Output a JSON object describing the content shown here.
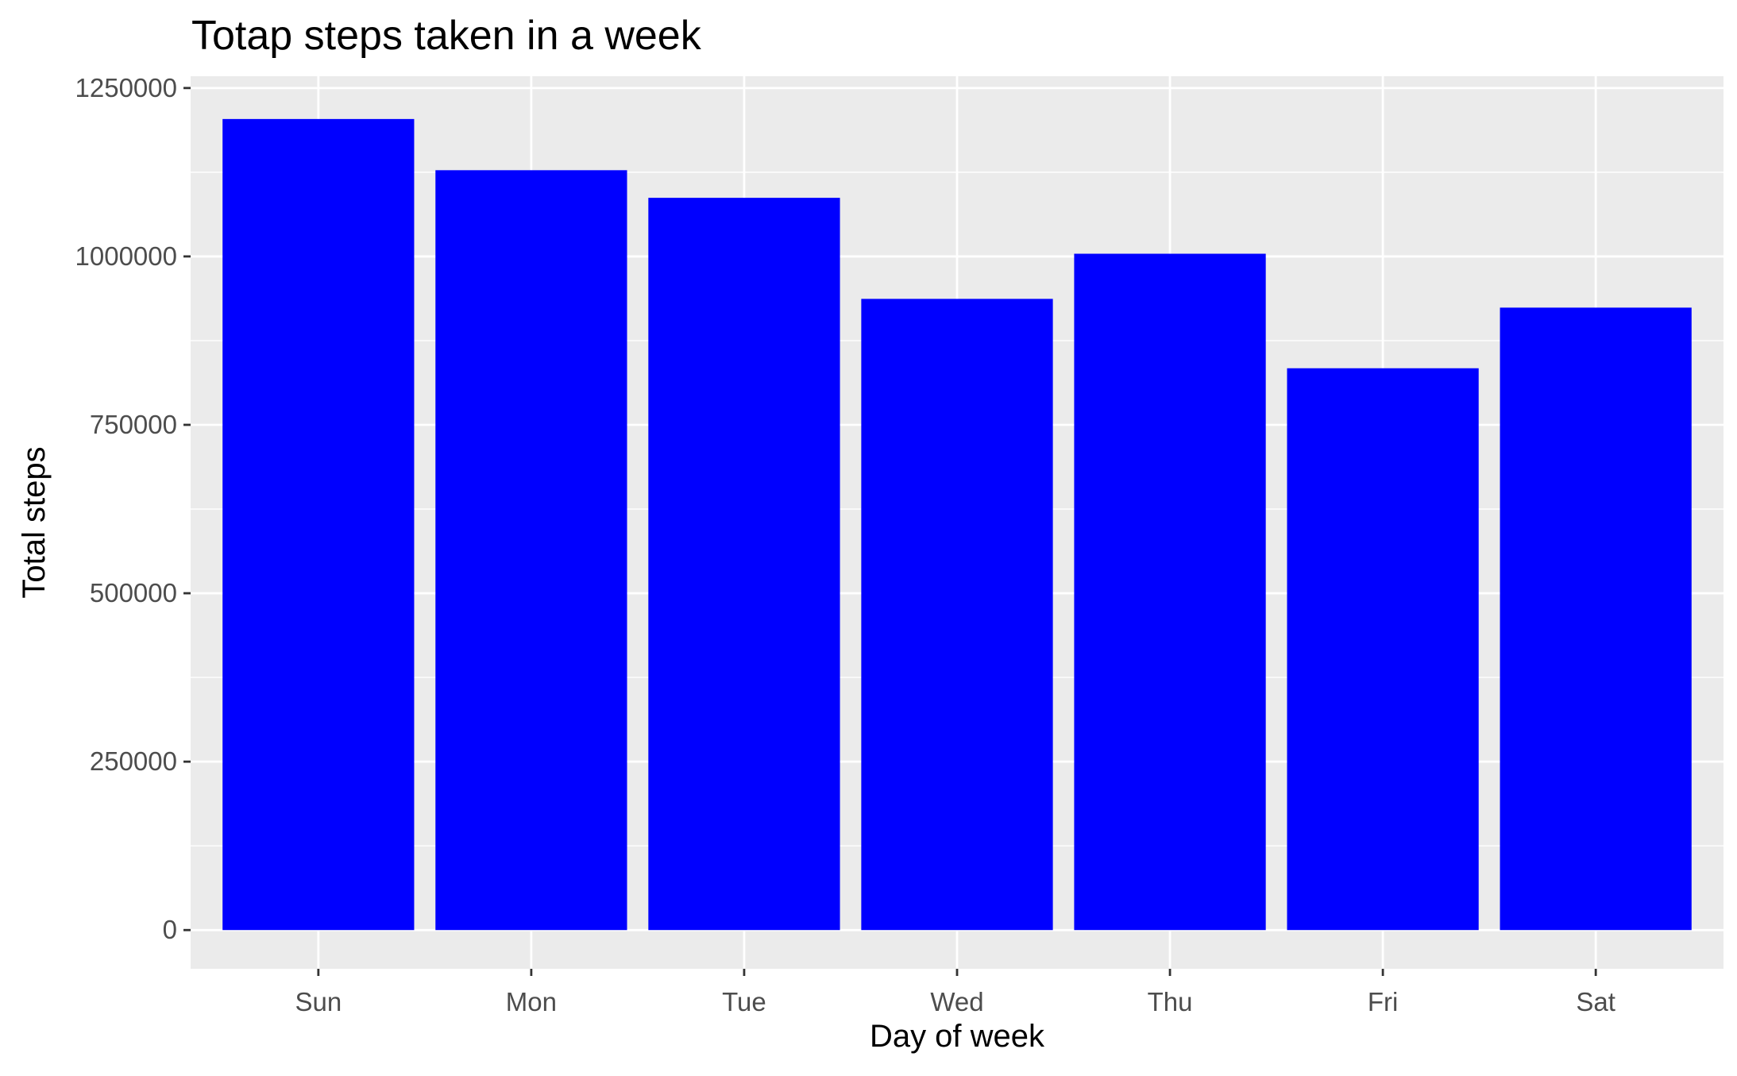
{
  "chart_data": {
    "type": "bar",
    "title": "Totap steps taken in a week",
    "xlabel": "Day of week",
    "ylabel": "Total steps",
    "categories": [
      "Sun",
      "Mon",
      "Tue",
      "Wed",
      "Thu",
      "Fri",
      "Sat"
    ],
    "values": [
      1204000,
      1128000,
      1087000,
      937000,
      1004000,
      834000,
      924000
    ],
    "ylim": [
      -57500,
      1267500
    ],
    "yticks": [
      0,
      250000,
      500000,
      750000,
      1000000,
      1250000
    ],
    "ytick_labels": [
      "0",
      "250000",
      "500000",
      "750000",
      "1000000",
      "1250000"
    ],
    "grid": true,
    "legend": "none",
    "colors": {
      "bar": "#0000FF",
      "panel": "#EBEBEB",
      "grid": "#FFFFFF",
      "tick_text": "#4D4D4D",
      "axis_tick": "#333333"
    }
  }
}
